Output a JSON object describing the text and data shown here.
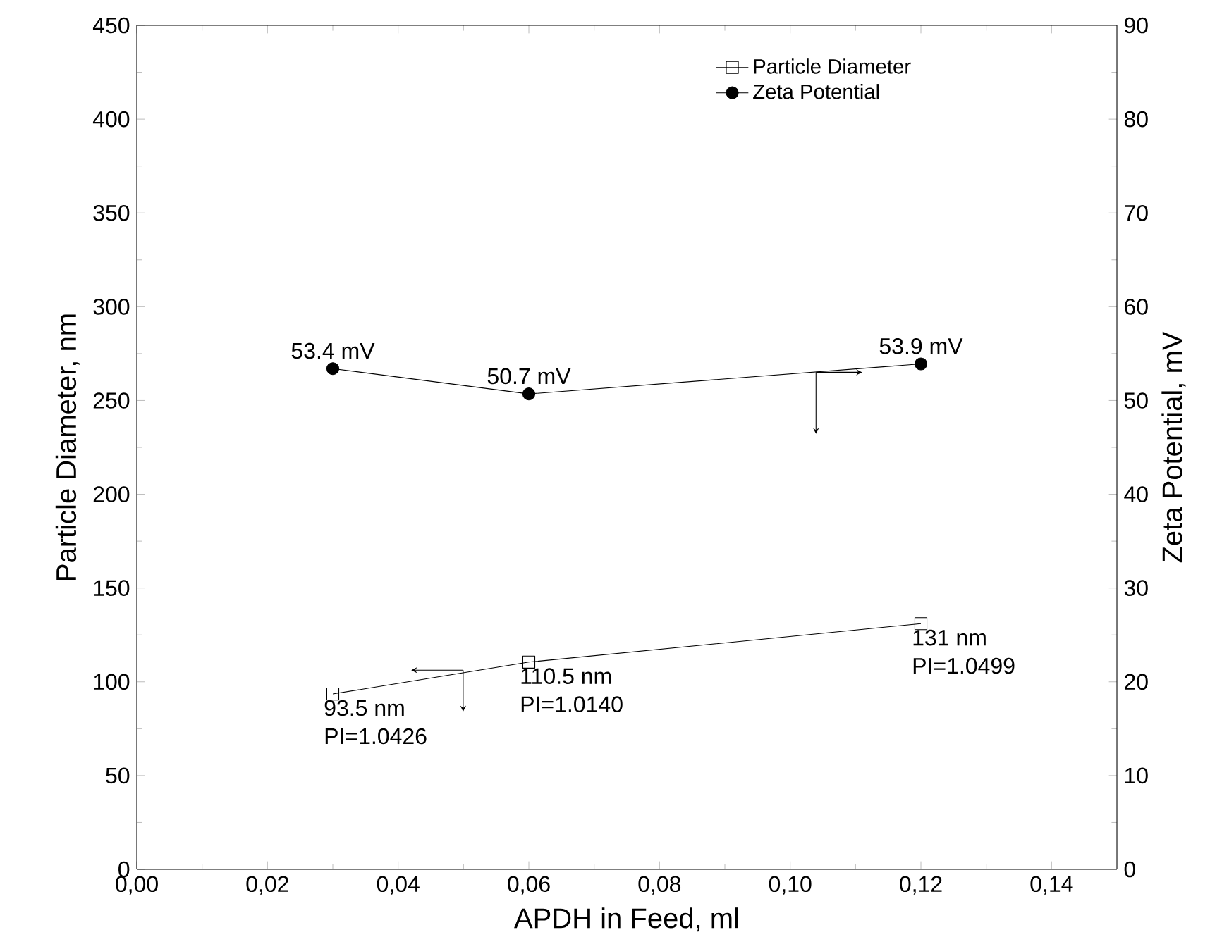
{
  "chart_data": {
    "type": "line",
    "xlabel": "APDH in Feed, ml",
    "ylabel": "Particle Diameter, nm",
    "y2label": "Zeta Potential, mV",
    "x": [
      0.03,
      0.06,
      0.12
    ],
    "series": [
      {
        "name": "Particle Diameter",
        "color": "#000000",
        "marker": "square",
        "values": [
          93.5,
          110.5,
          131
        ],
        "value_labels": [
          "93.5 nm",
          "110.5 nm",
          "131 nm"
        ]
      },
      {
        "name": "Zeta Potential",
        "color": "#000000",
        "marker": "circle",
        "axis": "y2",
        "values": [
          53.4,
          50.7,
          53.9
        ],
        "value_labels": [
          "53.4 mV",
          "50.7 mV",
          "53.9 mV"
        ]
      }
    ],
    "annotations": [
      {
        "text": "PI=1.0426",
        "x": 0.03,
        "y": 93.5
      },
      {
        "text": "PI=1.0140",
        "x": 0.06,
        "y": 110.5
      },
      {
        "text": "PI=1.0499",
        "x": 0.12,
        "y": 131
      }
    ],
    "xlim": [
      0,
      0.15
    ],
    "xticks": [
      {
        "value": 0,
        "label": "0,00"
      },
      {
        "value": 0.02,
        "label": "0,02"
      },
      {
        "value": 0.04,
        "label": "0,04"
      },
      {
        "value": 0.06,
        "label": "0,06"
      },
      {
        "value": 0.08,
        "label": "0,08"
      },
      {
        "value": 0.1,
        "label": "0,10"
      },
      {
        "value": 0.12,
        "label": "0,12"
      },
      {
        "value": 0.14,
        "label": "0,14"
      }
    ],
    "ylim": [
      0,
      450
    ],
    "yticks": [
      0,
      50,
      100,
      150,
      200,
      250,
      300,
      350,
      400,
      450
    ],
    "y2lim": [
      0,
      90
    ],
    "y2ticks": [
      0,
      10,
      20,
      30,
      40,
      50,
      60,
      70,
      80,
      90
    ],
    "legend": "top right",
    "grid": false
  }
}
